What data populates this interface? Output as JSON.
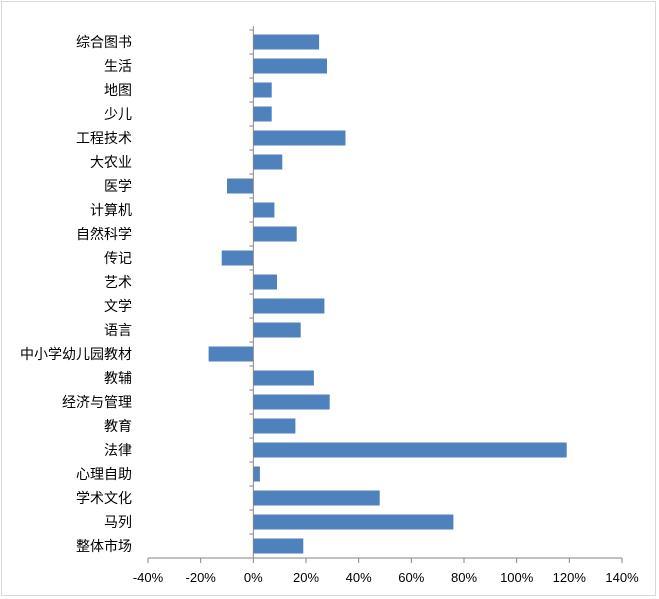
{
  "chart_data": {
    "type": "bar",
    "orientation": "horizontal",
    "title": "",
    "xlabel": "",
    "ylabel": "",
    "xlim": [
      -40,
      140
    ],
    "x_ticks": [
      -40,
      -20,
      0,
      20,
      40,
      60,
      80,
      100,
      120,
      140
    ],
    "tick_suffix": "%",
    "grid": false,
    "legend": "none",
    "bar_color": "#4f81bd",
    "categories": [
      "综合图书",
      "生活",
      "地图",
      "少儿",
      "工程技术",
      "大农业",
      "医学",
      "计算机",
      "自然科学",
      "传记",
      "艺术",
      "文学",
      "语言",
      "中小学幼儿园教材",
      "教辅",
      "经济与管理",
      "教育",
      "法律",
      "心理自助",
      "学术文化",
      "马列",
      "整体市场"
    ],
    "values": [
      25,
      28,
      7,
      7,
      35,
      11,
      -10,
      8,
      16.5,
      -12,
      9,
      27,
      18,
      -17,
      23,
      29,
      16,
      119,
      2.5,
      48,
      76,
      19
    ]
  }
}
